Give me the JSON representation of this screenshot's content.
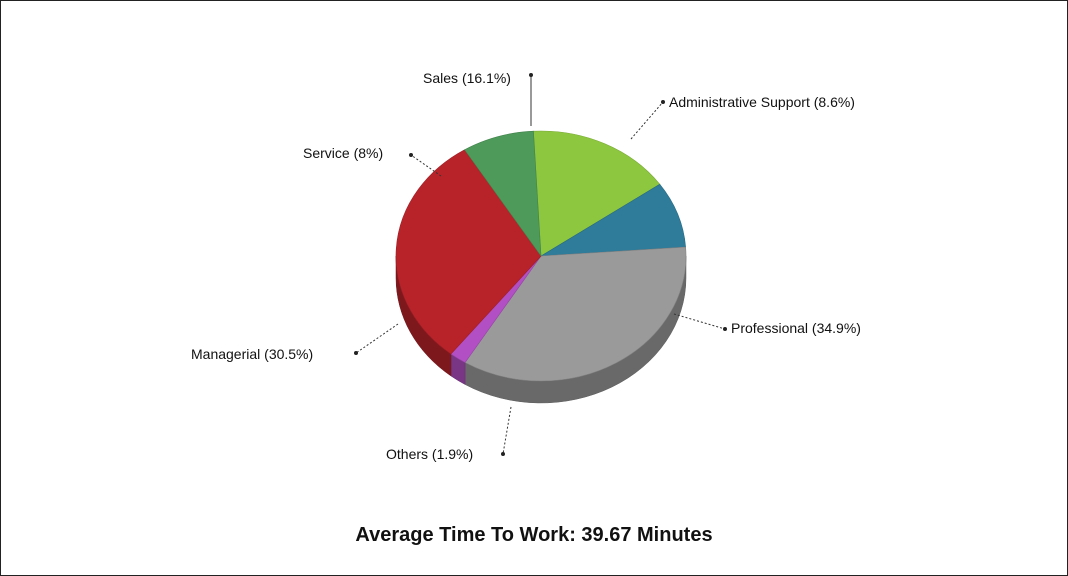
{
  "chart_data": {
    "type": "pie",
    "title": "Average Time To Work: 39.67 Minutes",
    "slices": [
      {
        "label": "Sales (16.1%)",
        "value": 16.1,
        "color": "#8dc63f"
      },
      {
        "label": "Administrative Support (8.6%)",
        "value": 8.6,
        "color": "#2e7b9a"
      },
      {
        "label": "Professional (34.9%)",
        "value": 34.9,
        "color": "#9a9a9a"
      },
      {
        "label": "Others (1.9%)",
        "value": 1.9,
        "color": "#b24fc4"
      },
      {
        "label": "Managerial (30.5%)",
        "value": 30.5,
        "color": "#b8232a"
      },
      {
        "label": "Service (8%)",
        "value": 8.0,
        "color": "#4e9a5a"
      }
    ]
  }
}
